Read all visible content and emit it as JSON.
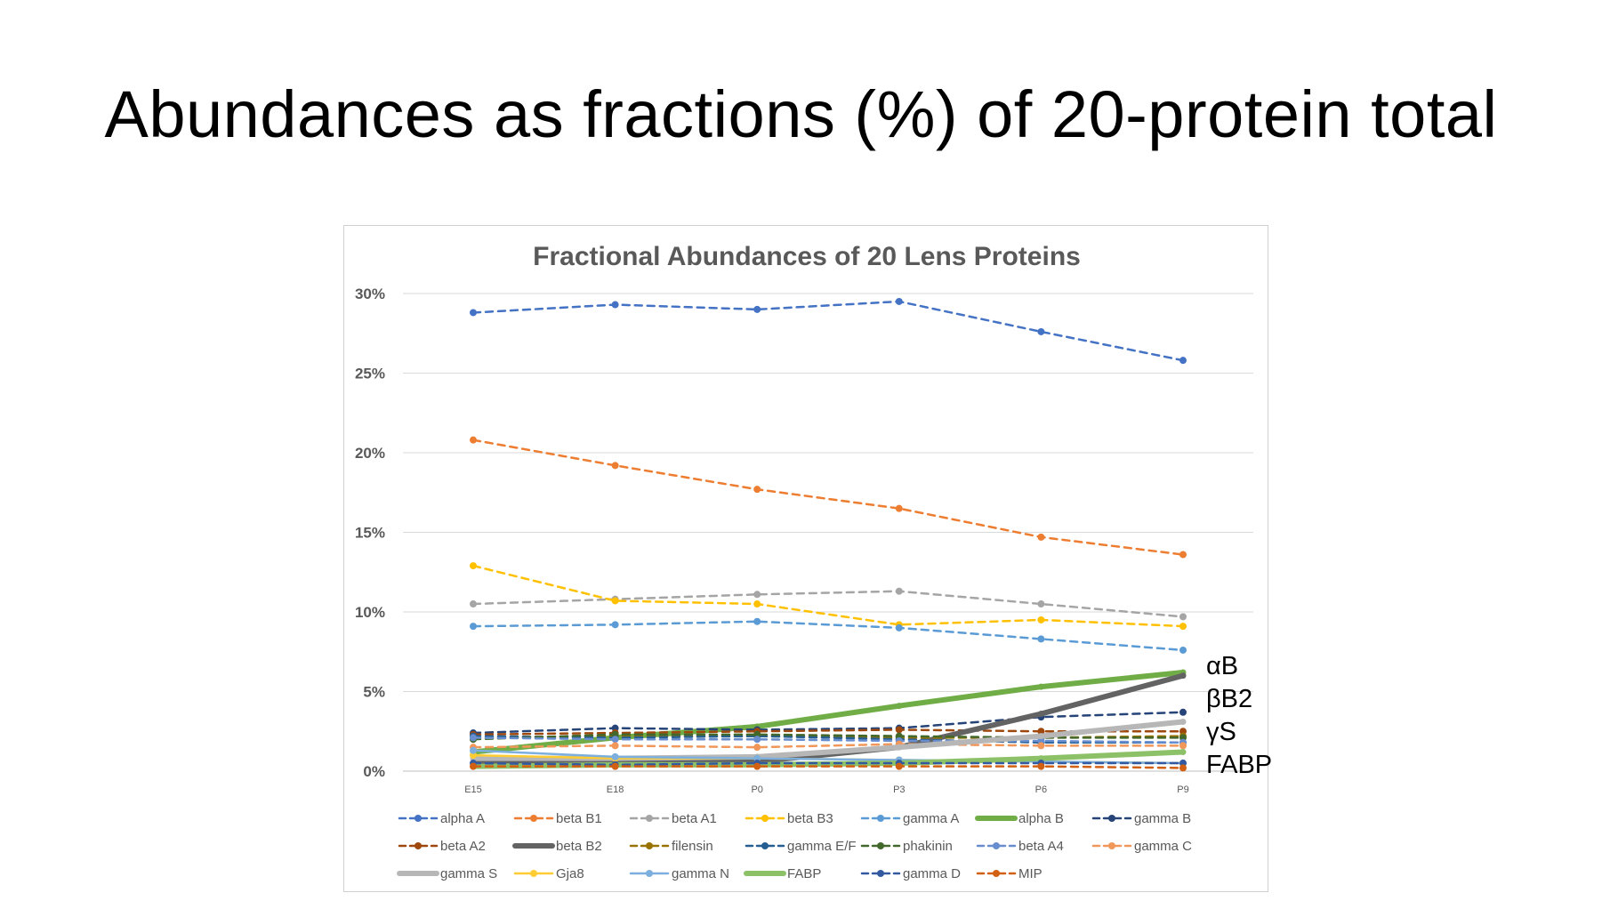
{
  "slide": {
    "title": "Abundances as fractions (%) of 20-protein total"
  },
  "chart_data": {
    "type": "line",
    "title": "Fractional Abundances of 20 Lens Proteins",
    "xlabel": "",
    "ylabel": "",
    "categories": [
      "E15",
      "E18",
      "P0",
      "P3",
      "P6",
      "P9"
    ],
    "ylim": [
      0,
      30
    ],
    "yticks": [
      0,
      5,
      10,
      15,
      20,
      25,
      30
    ],
    "ytick_labels": [
      "0%",
      "5%",
      "10%",
      "15%",
      "20%",
      "25%",
      "30%"
    ],
    "grid": true,
    "legend_position": "bottom",
    "series": [
      {
        "name": "alpha A",
        "color": "#4472C4",
        "style": "dashed",
        "values": [
          28.8,
          29.3,
          29.0,
          29.5,
          27.6,
          25.8
        ]
      },
      {
        "name": "beta B1",
        "color": "#ED7D31",
        "style": "dashed",
        "values": [
          20.8,
          19.2,
          17.7,
          16.5,
          14.7,
          13.6
        ]
      },
      {
        "name": "beta A1",
        "color": "#A5A5A5",
        "style": "dashed",
        "values": [
          10.5,
          10.8,
          11.1,
          11.3,
          10.5,
          9.7
        ]
      },
      {
        "name": "beta B3",
        "color": "#FFC000",
        "style": "dashed",
        "values": [
          12.9,
          10.7,
          10.5,
          9.2,
          9.5,
          9.1
        ]
      },
      {
        "name": "gamma A",
        "color": "#5B9BD5",
        "style": "dashed",
        "values": [
          9.1,
          9.2,
          9.4,
          9.0,
          8.3,
          7.6
        ]
      },
      {
        "name": "alpha B",
        "color": "#70AD47",
        "style": "thick",
        "values": [
          1.2,
          2.1,
          2.8,
          4.1,
          5.3,
          6.2
        ]
      },
      {
        "name": "gamma B",
        "color": "#264478",
        "style": "dashed",
        "values": [
          2.4,
          2.7,
          2.6,
          2.7,
          3.4,
          3.7
        ]
      },
      {
        "name": "beta A2",
        "color": "#9E480E",
        "style": "dashed",
        "values": [
          2.3,
          2.4,
          2.5,
          2.6,
          2.5,
          2.5
        ]
      },
      {
        "name": "beta B2",
        "color": "#636363",
        "style": "thick",
        "values": [
          0.5,
          0.5,
          0.6,
          1.5,
          3.6,
          6.0
        ]
      },
      {
        "name": "filensin",
        "color": "#997300",
        "style": "dashed",
        "values": [
          2.1,
          2.2,
          2.2,
          2.1,
          2.1,
          2.2
        ]
      },
      {
        "name": "gamma E/F",
        "color": "#255E91",
        "style": "dashed",
        "values": [
          2.2,
          2.1,
          2.2,
          2.0,
          1.8,
          1.8
        ]
      },
      {
        "name": "phakinin",
        "color": "#43682B",
        "style": "dashed",
        "values": [
          2.0,
          2.3,
          2.3,
          2.2,
          2.1,
          2.1
        ]
      },
      {
        "name": "beta A4",
        "color": "#698ED0",
        "style": "dashed",
        "values": [
          2.1,
          2.0,
          2.0,
          1.9,
          1.9,
          1.8
        ]
      },
      {
        "name": "gamma C",
        "color": "#F1975A",
        "style": "dashed",
        "values": [
          1.5,
          1.6,
          1.5,
          1.7,
          1.6,
          1.6
        ]
      },
      {
        "name": "gamma S",
        "color": "#B7B7B7",
        "style": "thick",
        "values": [
          0.8,
          0.8,
          0.9,
          1.5,
          2.2,
          3.1
        ]
      },
      {
        "name": "Gja8",
        "color": "#FFCD33",
        "style": "solid",
        "values": [
          1.0,
          0.8,
          0.8,
          0.7,
          0.6,
          0.5
        ]
      },
      {
        "name": "gamma N",
        "color": "#7CAFDD",
        "style": "solid",
        "values": [
          1.3,
          0.9,
          0.8,
          0.7,
          0.6,
          0.5
        ]
      },
      {
        "name": "FABP",
        "color": "#8CC168",
        "style": "thick",
        "values": [
          0.3,
          0.4,
          0.4,
          0.5,
          0.8,
          1.2
        ]
      },
      {
        "name": "gamma D",
        "color": "#335AA1",
        "style": "dashed",
        "values": [
          0.5,
          0.4,
          0.5,
          0.5,
          0.5,
          0.5
        ]
      },
      {
        "name": "MIP",
        "color": "#D26012",
        "style": "dashed",
        "values": [
          0.3,
          0.3,
          0.3,
          0.3,
          0.3,
          0.2
        ]
      }
    ],
    "annotations": [
      {
        "text": "αB",
        "anchor_series": "alpha B"
      },
      {
        "text": "βB2",
        "anchor_series": "beta B2"
      },
      {
        "text": "γS",
        "anchor_series": "gamma S"
      },
      {
        "text": "FABP",
        "anchor_series": "FABP"
      }
    ]
  }
}
